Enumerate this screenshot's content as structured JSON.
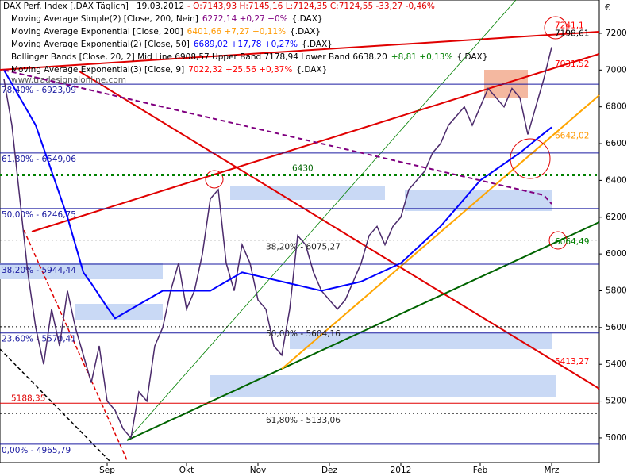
{
  "chart_data": {
    "type": "line",
    "header": {
      "title": "DAX Perf. Index [.DAX Täglich]",
      "date": "19.03.2012",
      "ohlc": "- O:7143,93 H:7145,16 L:7124,35 C:7124,55 -33,27 -0,46%"
    },
    "indicators": [
      {
        "name": "Moving Average Simple(2) [Close, 200, Nein]",
        "values": "6272,14 +0,27 +0%",
        "suffix": "{.DAX}",
        "color": "#800080"
      },
      {
        "name": "Moving Average Exponential [Close, 200]",
        "values": "6401,66 +7,27 +0,11%",
        "suffix": "{.DAX}",
        "color": "#ff9900"
      },
      {
        "name": "Moving Average Exponential(2) [Close, 50]",
        "values": "6689,02 +17,78 +0,27%",
        "suffix": "{.DAX}",
        "color": "#0000ff"
      },
      {
        "name": "Bollinger Bands [Close, 20, 2] Mid Line 6908,57 Upper Band 7178,94 Lower Band 6638,20",
        "values": "+8,81 +0,13%",
        "suffix": "{.DAX}",
        "color": "#008000"
      },
      {
        "name": "Moving Average Exponential(3) [Close, 9]",
        "values": "7022,32 +25,56 +0,37%",
        "suffix": "{.DAX}",
        "color": "#ff0000"
      }
    ],
    "watermark": "www.tradesignalonline.com",
    "currency": "€",
    "categories": [
      null,
      null,
      null,
      null,
      null,
      null,
      null,
      null,
      null,
      null,
      null,
      null,
      null,
      "Sep",
      null,
      null,
      null,
      null,
      null,
      null,
      null,
      null,
      null,
      "Okt",
      null,
      null,
      null,
      null,
      null,
      null,
      null,
      null,
      "Nov",
      null,
      null,
      null,
      null,
      null,
      null,
      null,
      null,
      "Dez",
      null,
      null,
      null,
      null,
      null,
      null,
      null,
      null,
      "2012",
      null,
      null,
      null,
      null,
      null,
      null,
      null,
      null,
      null,
      "Feb",
      null,
      null,
      null,
      null,
      null,
      null,
      null,
      null,
      "Mrz"
    ],
    "series": [
      {
        "name": "Close",
        "color": "#4b2a6b",
        "values": [
          6950,
          6700,
          6300,
          5900,
          5600,
          5400,
          5700,
          5500,
          5800,
          5600,
          5450,
          5300,
          5500,
          5200,
          5150,
          5050,
          5000,
          5250,
          5200,
          5500,
          5600,
          5800,
          5950,
          5700,
          5800,
          6000,
          6300,
          6350,
          5950,
          5800,
          6050,
          5950,
          5750,
          5700,
          5500,
          5450,
          5700,
          6100,
          6050,
          5900,
          5800,
          5750,
          5700,
          5750,
          5850,
          5950,
          6100,
          6150,
          6050,
          6150,
          6200,
          6350,
          6400,
          6450,
          6550,
          6600,
          6700,
          6750,
          6800,
          6700,
          6800,
          6900,
          6850,
          6800,
          6900,
          6850,
          6650,
          6800,
          6950,
          7124.55
        ]
      },
      {
        "name": "EMA 50",
        "color": "#0000ff",
        "values": [
          7000,
          6925,
          6850,
          6775,
          6700,
          6575,
          6450,
          6325,
          6200,
          6050,
          5900,
          5840,
          5775,
          5710,
          5650,
          5675,
          5700,
          5725,
          5750,
          5775,
          5800,
          5800,
          5800,
          5800,
          5800,
          5800,
          5800,
          5825,
          5850,
          5875,
          5900,
          5890,
          5880,
          5870,
          5860,
          5850,
          5840,
          5830,
          5820,
          5810,
          5800,
          5810,
          5820,
          5830,
          5840,
          5850,
          5870,
          5890,
          5910,
          5930,
          5950,
          5990,
          6030,
          6070,
          6110,
          6150,
          6200,
          6250,
          6300,
          6350,
          6400,
          6430,
          6460,
          6490,
          6520,
          6550,
          6585,
          6620,
          6655,
          6689.02
        ]
      },
      {
        "name": "SMA 200",
        "color": "#800080",
        "values": [
          7000,
          6990,
          6980,
          6970,
          6960,
          6950,
          6940,
          6930,
          6920,
          6910,
          6900,
          6890,
          6880,
          6870,
          6860,
          6850,
          6840,
          6830,
          6820,
          6810,
          6800,
          6790,
          6780,
          6770,
          6760,
          6750,
          6740,
          6730,
          6720,
          6710,
          6700,
          6690,
          6680,
          6670,
          6660,
          6650,
          6640,
          6630,
          6620,
          6610,
          6600,
          6590,
          6580,
          6570,
          6560,
          6550,
          6540,
          6530,
          6520,
          6510,
          6500,
          6490,
          6480,
          6470,
          6460,
          6450,
          6440,
          6430,
          6420,
          6410,
          6400,
          6390,
          6380,
          6370,
          6360,
          6350,
          6340,
          6330,
          6320,
          6272.14
        ]
      }
    ],
    "ylim": [
      4866,
      7381
    ],
    "yticks": [
      5000,
      5200,
      5400,
      5600,
      5800,
      6000,
      6200,
      6400,
      6600,
      6800,
      7000,
      7200
    ],
    "left_levels": [
      {
        "label": "78,40% - 6923,09",
        "value": 6923.09
      },
      {
        "label": "61,80% - 6549,06",
        "value": 6549.06
      },
      {
        "label": "50,00% - 6246,75",
        "value": 6246.75
      },
      {
        "label": "38,20% - 5944,44",
        "value": 5944.44
      },
      {
        "label": "23,60% - 5570,41",
        "value": 5570.41
      },
      {
        "label": "0,00% - 4965,79",
        "value": 4965.79
      }
    ],
    "mid_levels": [
      {
        "label": "38,20% - 6075,27",
        "value": 6075.27
      },
      {
        "label": "50,00% - 5604,16",
        "value": 5604.16
      },
      {
        "label": "61,80% - 5133,06",
        "value": 5133.06
      }
    ],
    "stop_level": {
      "label": "5188,35",
      "value": 5188.35
    },
    "support_level": {
      "label": "6430",
      "value": 6430
    },
    "price_labels": [
      {
        "label": "7241,1",
        "value": 7241.1,
        "color": "#ff0000"
      },
      {
        "label": "7198,61",
        "value": 7198.61,
        "color": "#000000"
      },
      {
        "label": "7031,52",
        "value": 7031.52,
        "color": "#ff0000"
      },
      {
        "label": "6642,02",
        "value": 6642.02,
        "color": "#ff9900"
      },
      {
        "label": "6064,49",
        "value": 6064.49,
        "color": "#008000"
      },
      {
        "label": "5413,27",
        "value": 5413.27,
        "color": "#ff0000"
      }
    ]
  }
}
